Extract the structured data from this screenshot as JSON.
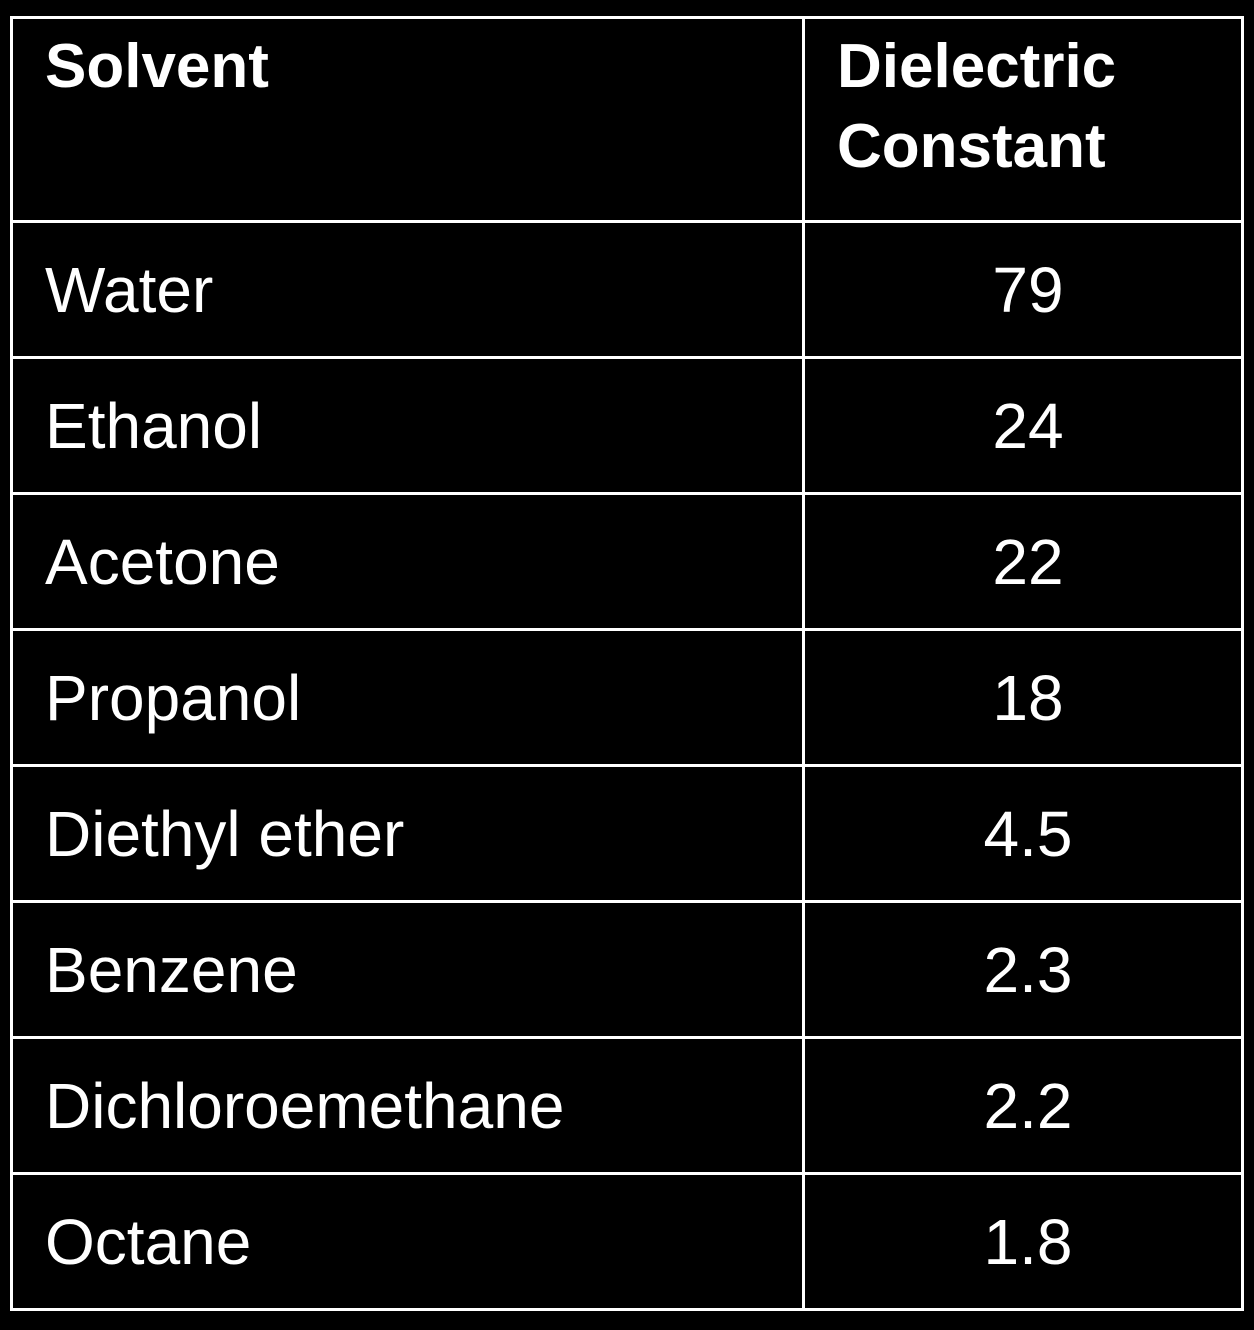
{
  "table": {
    "headers": [
      "Solvent",
      "Dielectric Constant"
    ],
    "rows": [
      [
        "Water",
        "79"
      ],
      [
        "Ethanol",
        "24"
      ],
      [
        "Acetone",
        "22"
      ],
      [
        "Propanol",
        "18"
      ],
      [
        "Diethyl ether",
        "4.5"
      ],
      [
        "Benzene",
        "2.3"
      ],
      [
        "Dichloroemethane",
        "2.2"
      ],
      [
        "Octane",
        "1.8"
      ]
    ]
  },
  "colors": {
    "background": "#000000",
    "text": "#ffffff",
    "border": "#ffffff"
  }
}
